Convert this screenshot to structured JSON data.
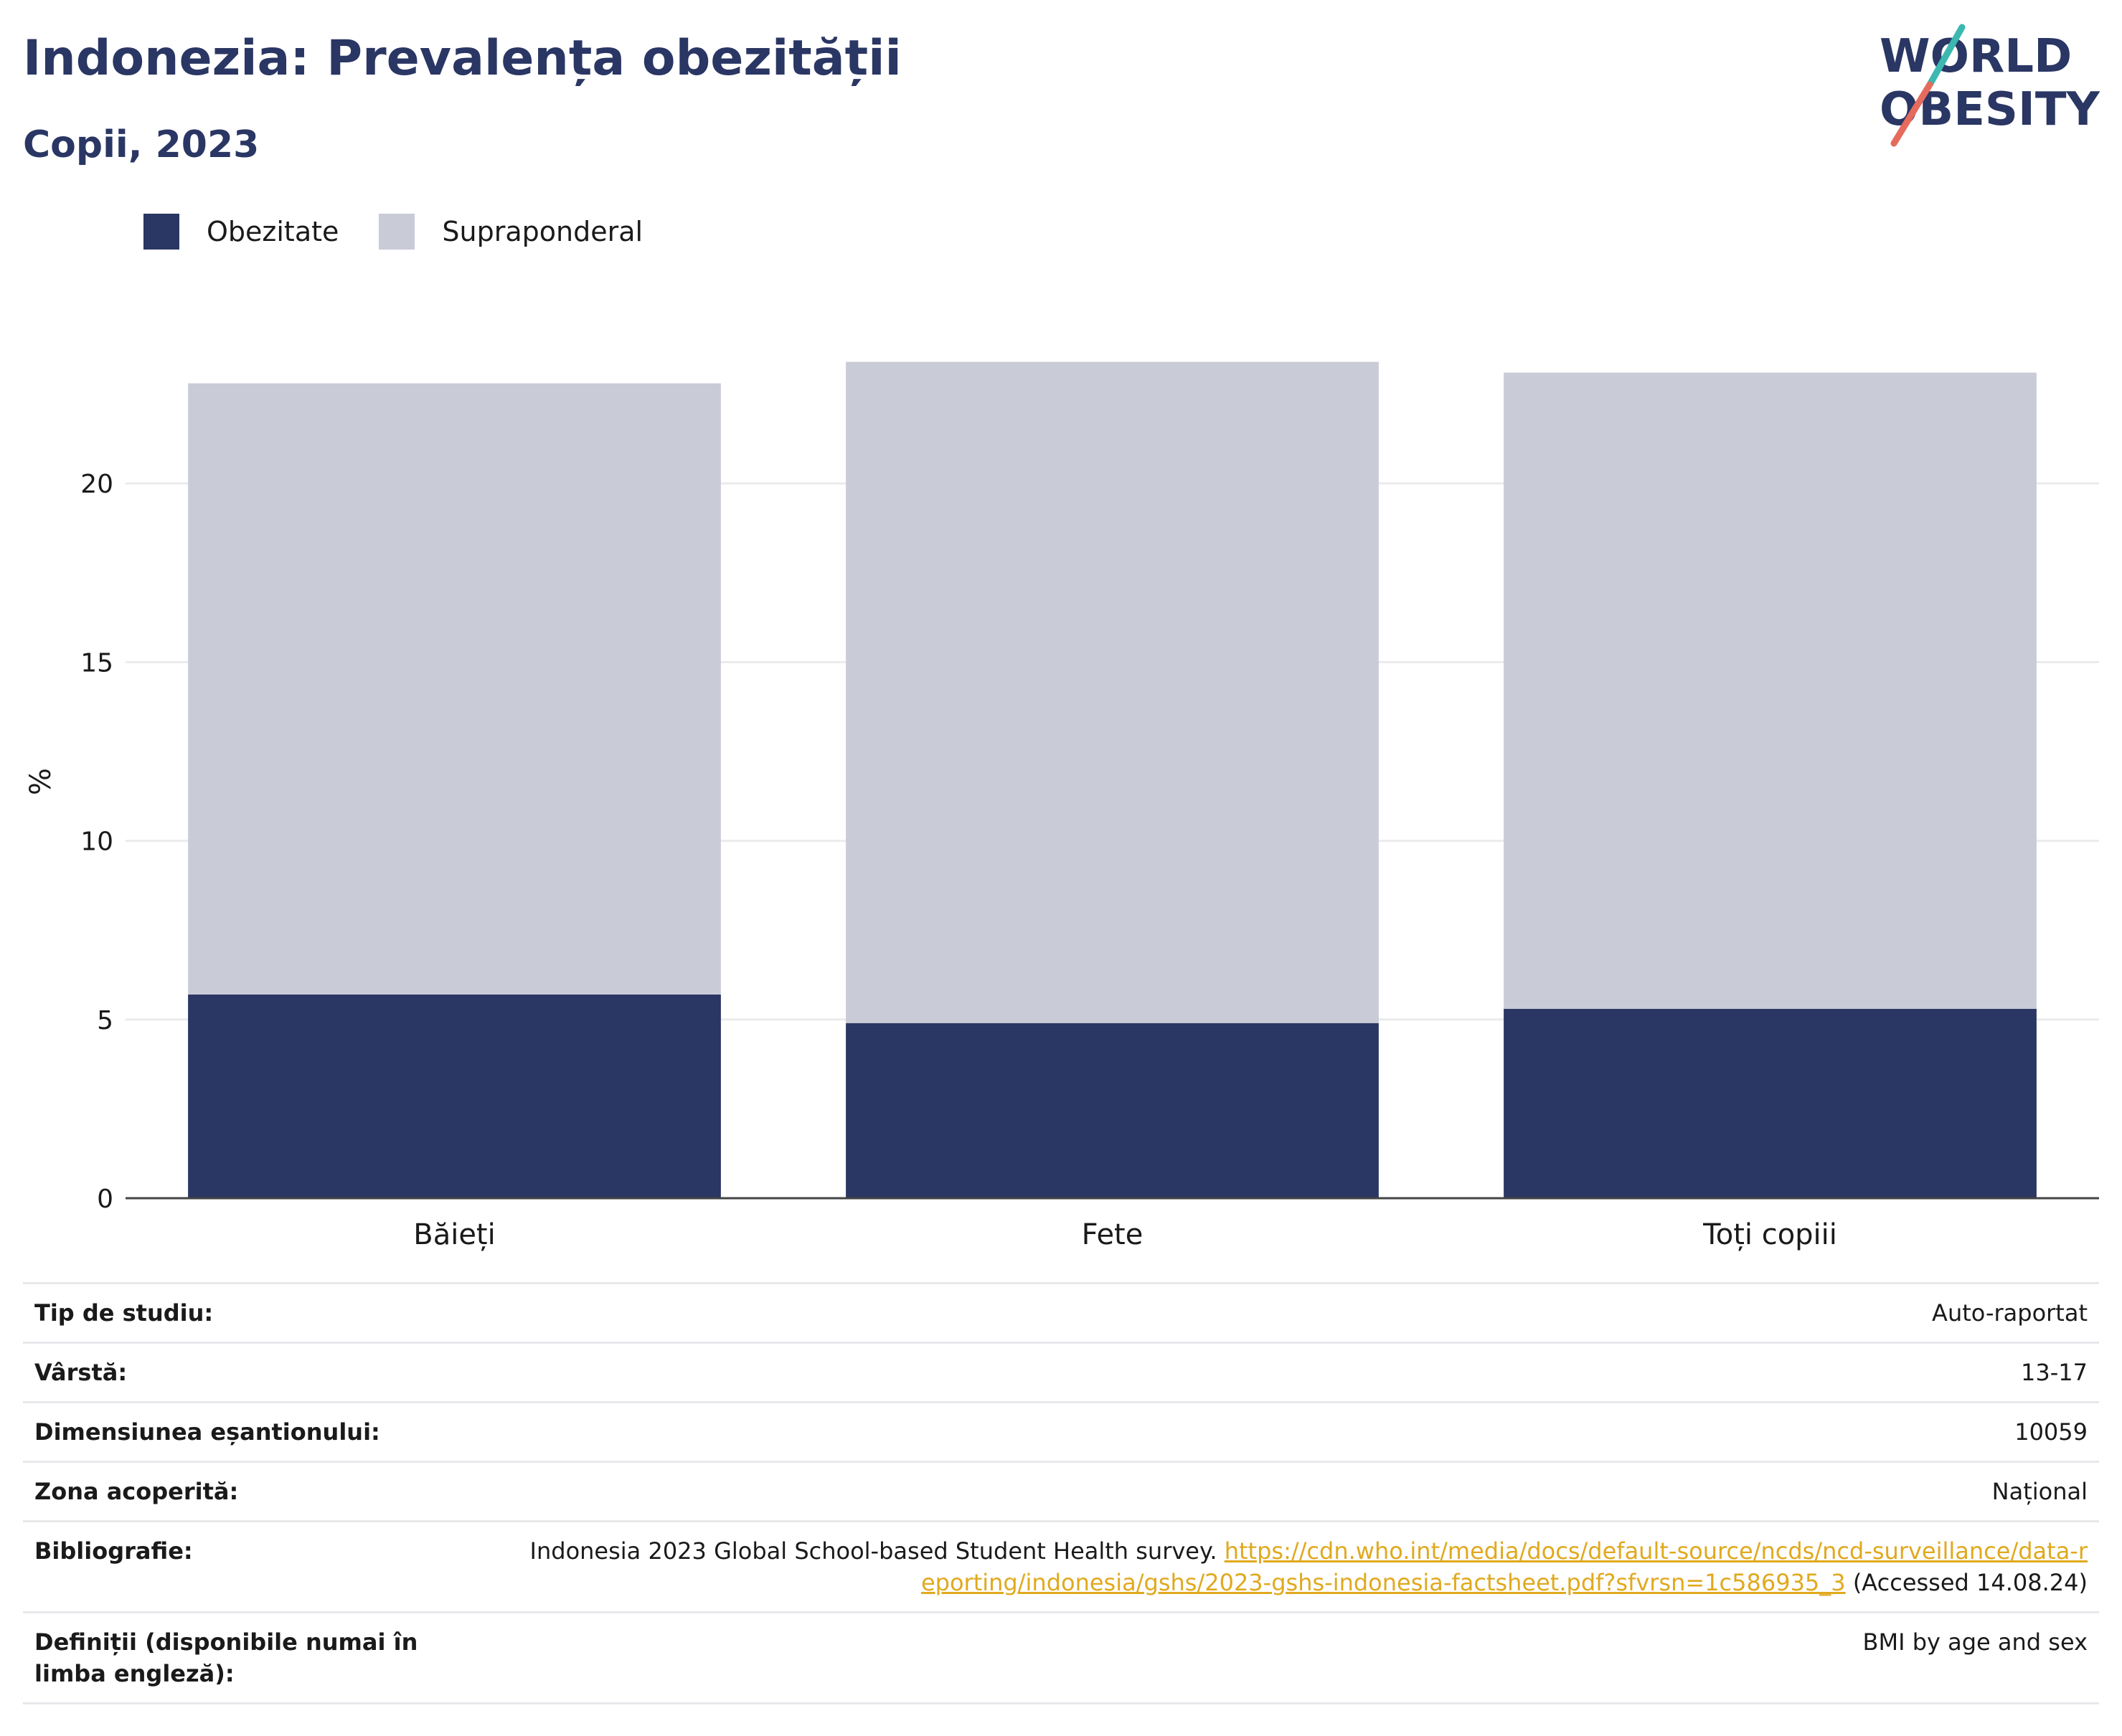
{
  "header": {
    "title": "Indonezia: Prevalența obezității",
    "subtitle": "Copii, 2023"
  },
  "logo": {
    "line1": "WORLD",
    "line2": "OBESITY",
    "colors": {
      "text": "#2a3663",
      "slash_top": "#3bb8b0",
      "slash_bottom": "#e56b5d"
    }
  },
  "legend": [
    {
      "label": "Obezitate",
      "color": "#2a3663"
    },
    {
      "label": "Supraponderal",
      "color": "#c9cbd7"
    }
  ],
  "chart_data": {
    "type": "bar",
    "stacked": true,
    "title": "",
    "xlabel": "",
    "ylabel": "%",
    "categories": [
      "Băieți",
      "Fete",
      "Toți copiii"
    ],
    "series": [
      {
        "name": "Obezitate",
        "color": "#2a3663",
        "values": [
          5.7,
          4.9,
          5.3
        ]
      },
      {
        "name": "Supraponderal",
        "color": "#c9cbd7",
        "values": [
          17.1,
          18.5,
          17.8
        ]
      }
    ],
    "yticks": [
      0,
      5,
      10,
      15,
      20
    ],
    "ylim": [
      0,
      25.5
    ],
    "grid": true,
    "legend_position": "top-left"
  },
  "info": [
    {
      "key": "Tip de studiu:",
      "value": "Auto-raportat"
    },
    {
      "key": "Vârstă:",
      "value": "13-17"
    },
    {
      "key": "Dimensiunea eșantionului:",
      "value": "10059"
    },
    {
      "key": "Zona acoperită:",
      "value": "Național"
    },
    {
      "key": "Bibliografie:",
      "value_prefix": "Indonesia 2023 Global School-based Student Health survey. ",
      "link": "https://cdn.who.int/media/docs/default-source/ncds/ncd-surveillance/data-reporting/indonesia/gshs/2023-gshs-indonesia-factsheet.pdf?sfvrsn=1c586935_3",
      "value_suffix": " (Accessed 14.08.24)"
    },
    {
      "key": "Definiții (disponibile numai în limba engleză):",
      "value": "BMI by age and sex"
    }
  ]
}
